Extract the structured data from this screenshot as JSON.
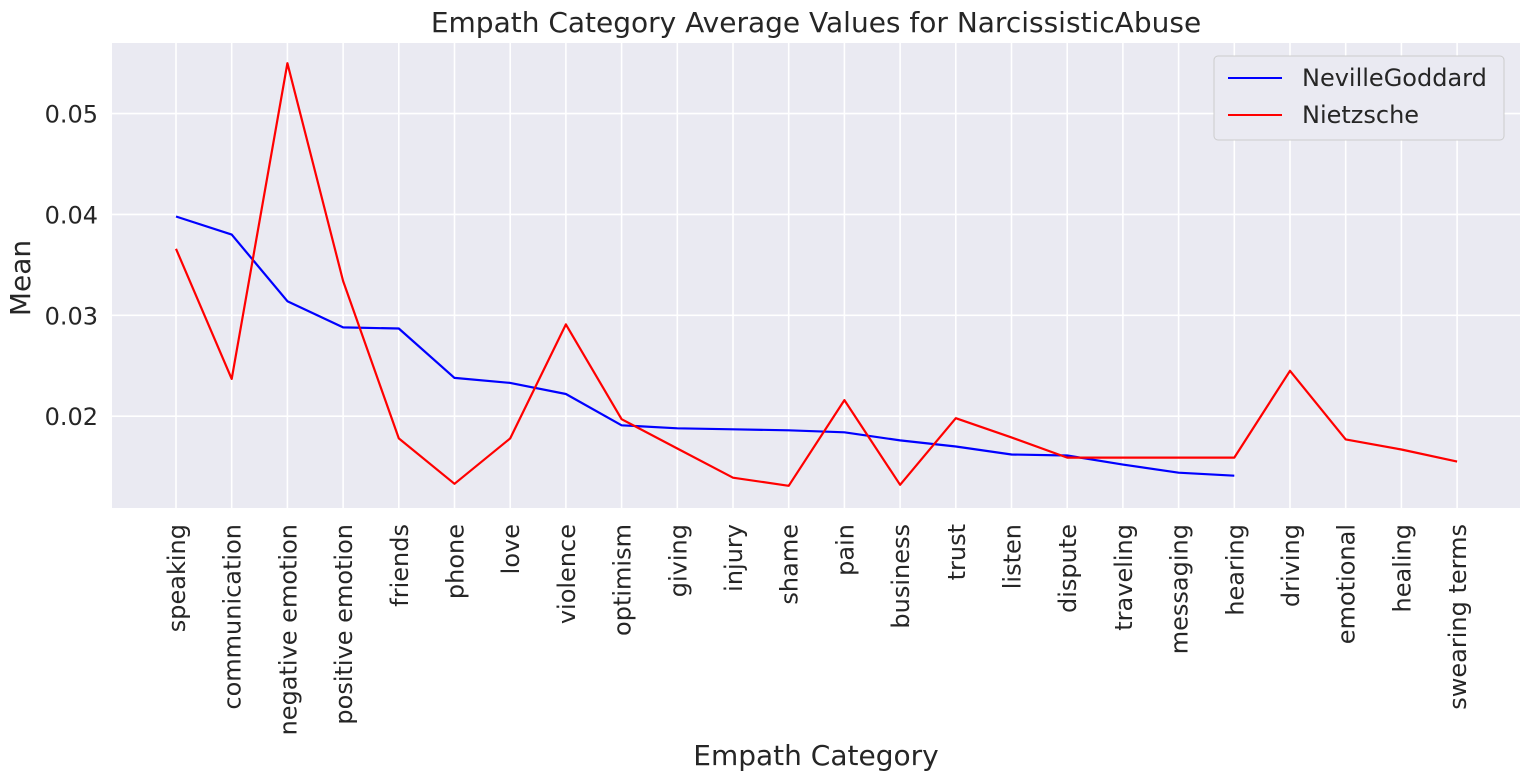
{
  "chart_data": {
    "type": "line",
    "title": "Empath Category Average Values for NarcissisticAbuse",
    "xlabel": "Empath Category",
    "ylabel": "Mean",
    "categories": [
      "speaking",
      "communication",
      "negative emotion",
      "positive emotion",
      "friends",
      "phone",
      "love",
      "violence",
      "optimism",
      "giving",
      "injury",
      "shame",
      "pain",
      "business",
      "trust",
      "listen",
      "dispute",
      "traveling",
      "messaging",
      "hearing",
      "driving",
      "emotional",
      "healing",
      "swearing terms"
    ],
    "yticks": [
      "0.02",
      "0.03",
      "0.04",
      "0.05"
    ],
    "ylim": [
      0.0109,
      0.057
    ],
    "grid": true,
    "legend_position": "top-right",
    "series": [
      {
        "name": "NevilleGoddard",
        "color": "#0000ff",
        "values": [
          0.0398,
          0.038,
          0.0314,
          0.0288,
          0.0287,
          0.0238,
          0.0233,
          0.0222,
          0.0191,
          0.0188,
          0.0187,
          0.0186,
          0.0184,
          0.0176,
          0.017,
          0.0162,
          0.0161,
          0.0152,
          0.0144,
          0.0141,
          null,
          null,
          null,
          null
        ]
      },
      {
        "name": "Nietzsche",
        "color": "#ff0000",
        "values": [
          0.0366,
          0.0237,
          0.055,
          0.0334,
          0.0178,
          0.0133,
          0.0178,
          0.0291,
          0.0197,
          0.0168,
          0.0139,
          0.0131,
          0.0216,
          0.0132,
          0.0198,
          0.0179,
          0.0159,
          0.0159,
          0.0159,
          0.0159,
          0.0245,
          0.0177,
          0.0167,
          0.0155
        ]
      }
    ]
  }
}
